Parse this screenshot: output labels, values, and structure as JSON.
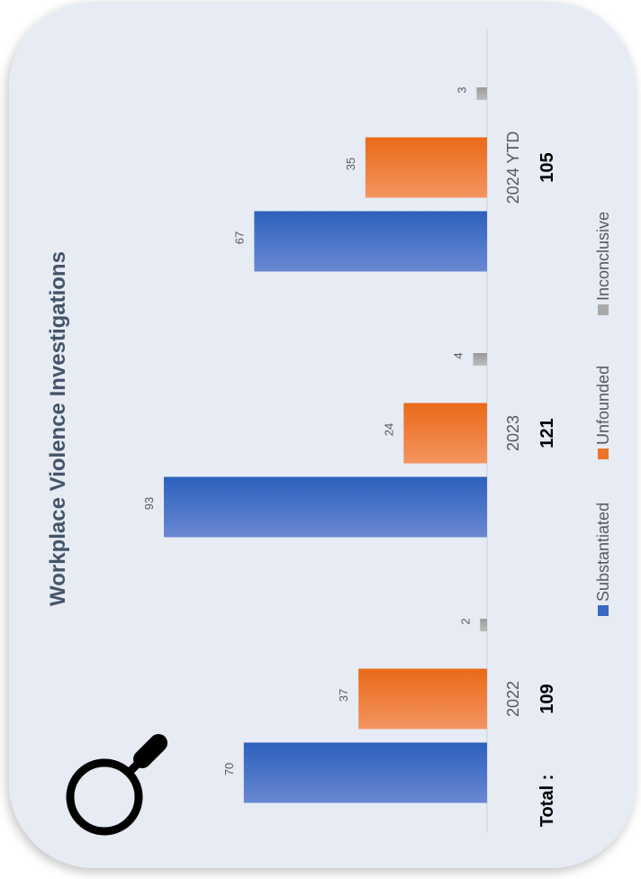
{
  "chart_data": {
    "type": "bar",
    "title": "Workplace Violence Investigations",
    "categories": [
      "2022",
      "2023",
      "2024 YTD"
    ],
    "series": [
      {
        "name": "Substantiated",
        "values": [
          70,
          93,
          67
        ],
        "color": "#3a68c4"
      },
      {
        "name": "Unfounded",
        "values": [
          37,
          24,
          35
        ],
        "color": "#ee7428"
      },
      {
        "name": "Inconclusive",
        "values": [
          2,
          4,
          3
        ],
        "color": "#a9a9a9"
      }
    ],
    "totals_label": "Total :",
    "totals": [
      109,
      121,
      105
    ],
    "legend_position": "bottom",
    "grid": false
  },
  "icons": {
    "magnifier": "magnifying-glass-icon"
  }
}
